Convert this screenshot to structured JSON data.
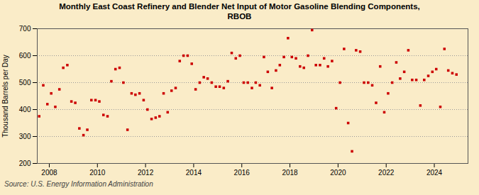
{
  "chart_data": {
    "type": "scatter",
    "title": "Monthly East Coast Refinery and Blender Net Input of Motor Gasoline Blending Components,\nRBOB",
    "ylabel": "Thousand Barrels per Day",
    "source": "Source: U.S. Energy Information Administration",
    "color": "#cc0000",
    "marker": "square",
    "grid": "y",
    "xlim": [
      2007.5,
      2025.4
    ],
    "xticks": [
      2008,
      2010,
      2012,
      2014,
      2016,
      2018,
      2020,
      2022,
      2024
    ],
    "ylim": [
      200,
      700
    ],
    "yticks": [
      200,
      300,
      400,
      500,
      600,
      700
    ],
    "x": [
      2007.58,
      2007.75,
      2007.92,
      2008.08,
      2008.25,
      2008.42,
      2008.58,
      2008.75,
      2008.92,
      2009.08,
      2009.25,
      2009.42,
      2009.58,
      2009.75,
      2009.92,
      2010.08,
      2010.25,
      2010.42,
      2010.58,
      2010.75,
      2010.92,
      2011.08,
      2011.25,
      2011.42,
      2011.58,
      2011.75,
      2011.92,
      2012.08,
      2012.25,
      2012.42,
      2012.58,
      2012.75,
      2012.92,
      2013.08,
      2013.25,
      2013.42,
      2013.58,
      2013.75,
      2013.92,
      2014.08,
      2014.25,
      2014.42,
      2014.58,
      2014.75,
      2014.92,
      2015.08,
      2015.25,
      2015.42,
      2015.58,
      2015.75,
      2015.92,
      2016.08,
      2016.25,
      2016.42,
      2016.58,
      2016.75,
      2016.92,
      2017.08,
      2017.25,
      2017.42,
      2017.58,
      2017.75,
      2017.92,
      2018.08,
      2018.25,
      2018.42,
      2018.58,
      2018.75,
      2018.92,
      2019.08,
      2019.25,
      2019.42,
      2019.58,
      2019.75,
      2019.92,
      2020.08,
      2020.25,
      2020.42,
      2020.58,
      2020.75,
      2020.92,
      2021.08,
      2021.25,
      2021.42,
      2021.58,
      2021.75,
      2021.92,
      2022.08,
      2022.25,
      2022.42,
      2022.58,
      2022.75,
      2022.92,
      2023.08,
      2023.25,
      2023.42,
      2023.58,
      2023.75,
      2023.92,
      2024.08,
      2024.25,
      2024.42,
      2024.58,
      2024.75,
      2024.92
    ],
    "values": [
      375,
      490,
      420,
      460,
      410,
      475,
      555,
      565,
      430,
      425,
      330,
      305,
      325,
      435,
      435,
      430,
      380,
      375,
      505,
      550,
      555,
      500,
      325,
      460,
      455,
      460,
      435,
      400,
      365,
      370,
      375,
      460,
      390,
      470,
      480,
      580,
      600,
      600,
      570,
      475,
      500,
      520,
      515,
      500,
      485,
      485,
      480,
      505,
      610,
      590,
      600,
      500,
      500,
      480,
      500,
      490,
      595,
      540,
      480,
      545,
      565,
      595,
      665,
      595,
      590,
      560,
      555,
      600,
      695,
      565,
      565,
      590,
      560,
      580,
      405,
      500,
      625,
      350,
      245,
      620,
      615,
      500,
      500,
      490,
      425,
      560,
      390,
      460,
      500,
      575,
      515,
      540,
      620,
      510,
      510,
      415,
      510,
      525,
      540,
      550,
      410,
      625,
      545,
      535,
      530
    ]
  }
}
